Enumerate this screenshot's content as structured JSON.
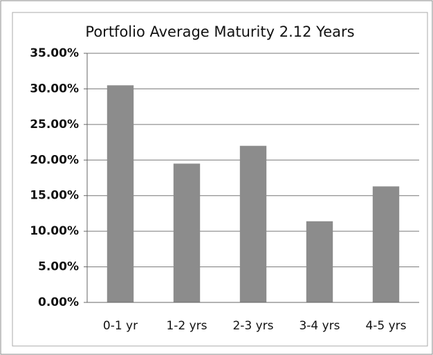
{
  "chart_data": {
    "type": "bar",
    "title": "Portfolio Average Maturity 2.12 Years",
    "categories": [
      "0-1 yr",
      "1-2 yrs",
      "2-3 yrs",
      "3-4 yrs",
      "4-5 yrs"
    ],
    "values": [
      30.5,
      19.5,
      22.0,
      11.4,
      16.3
    ],
    "color": "#8c8c8c",
    "ylim": [
      0,
      35
    ],
    "yticks": [
      {
        "value": 0,
        "label": "0.00%"
      },
      {
        "value": 5,
        "label": "5.00%"
      },
      {
        "value": 10,
        "label": "10.00%"
      },
      {
        "value": 15,
        "label": "15.00%"
      },
      {
        "value": 20,
        "label": "20.00%"
      },
      {
        "value": 25,
        "label": "25.00%"
      },
      {
        "value": 30,
        "label": "30.00%"
      },
      {
        "value": 35,
        "label": "35.00%"
      }
    ],
    "grid": true
  }
}
